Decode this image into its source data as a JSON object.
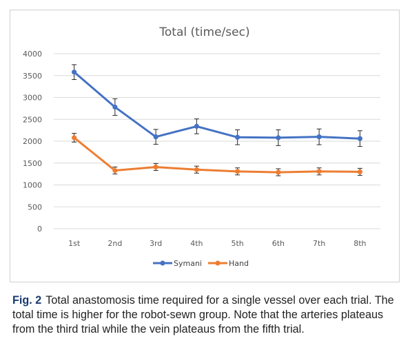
{
  "chart_data": {
    "type": "line",
    "title": "Total (time/sec)",
    "categories": [
      "1st",
      "2nd",
      "3rd",
      "4th",
      "5th",
      "6th",
      "7th",
      "8th"
    ],
    "ylim": [
      0,
      4000
    ],
    "yticks": [
      0,
      500,
      1000,
      1500,
      2000,
      2500,
      3000,
      3500,
      4000
    ],
    "grid": true,
    "legend_position": "bottom",
    "series": [
      {
        "name": "Symani",
        "color": "#4472C4",
        "values": [
          3580,
          2780,
          2100,
          2340,
          2090,
          2080,
          2100,
          2060
        ],
        "error": [
          170,
          190,
          170,
          170,
          170,
          180,
          180,
          180
        ]
      },
      {
        "name": "Hand",
        "color": "#ED7D31",
        "values": [
          2080,
          1330,
          1410,
          1350,
          1310,
          1290,
          1310,
          1300
        ],
        "error": [
          100,
          80,
          80,
          80,
          80,
          80,
          80,
          80
        ]
      }
    ]
  },
  "caption": {
    "label": "Fig. 2",
    "text": "Total anastomosis time required for a single vessel over each trial. The total time is higher for the robot-sewn group. Note that the arteries plateaus from the third trial while the vein plateaus from the fifth trial."
  }
}
